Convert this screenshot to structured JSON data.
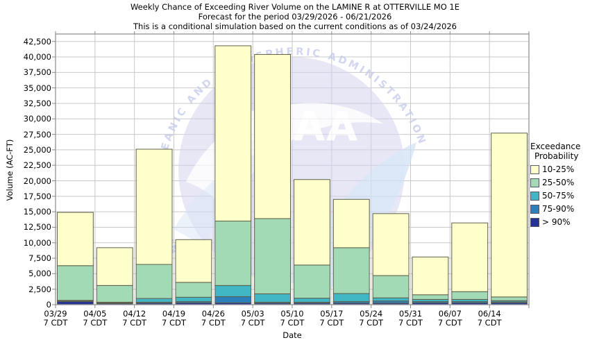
{
  "titles": {
    "line1": "Weekly Chance of Exceeding River Volume on the LAMINE R at OTTERVILLE MO 1E",
    "line2": "Forecast for the period 03/29/2026 - 06/21/2026",
    "line3": "This is a conditional simulation based on the current conditions as of 03/24/2026"
  },
  "axes": {
    "x_label": "Date",
    "y_label": "Volume (AC-FT)",
    "y_tick_step": 2500,
    "y_tick_max": 42500,
    "tick_time_suffix": "7 CDT"
  },
  "legend": {
    "title_line1": "Exceedance",
    "title_line2": "Probability",
    "items": [
      {
        "label": "10-25%",
        "color": "#FFFFCC"
      },
      {
        "label": "25-50%",
        "color": "#A1DAB4"
      },
      {
        "label": "50-75%",
        "color": "#41B6C4"
      },
      {
        "label": "75-90%",
        "color": "#2C7FB8"
      },
      {
        "label": "> 90%",
        "color": "#253494"
      }
    ]
  },
  "chart_data": {
    "type": "bar",
    "stacked": true,
    "title": "Weekly Chance of Exceeding River Volume on the LAMINE R at OTTERVILLE MO 1E",
    "xlabel": "Date",
    "ylabel": "Volume (AC-FT)",
    "ylim": [
      0,
      43700
    ],
    "grid": true,
    "legend_position": "right",
    "categories": [
      "03/29",
      "04/05",
      "04/12",
      "04/19",
      "04/26",
      "05/03",
      "05/10",
      "05/17",
      "05/24",
      "05/31",
      "06/07",
      "06/14"
    ],
    "category_sublabel": "7 CDT",
    "series": [
      {
        "name": "> 90%",
        "color": "#253494",
        "values": [
          500,
          200,
          250,
          300,
          300,
          250,
          250,
          250,
          250,
          300,
          300,
          300
        ]
      },
      {
        "name": "75-90%",
        "color": "#2C7FB8",
        "values": [
          150,
          100,
          150,
          200,
          1000,
          150,
          150,
          250,
          350,
          200,
          200,
          150
        ]
      },
      {
        "name": "50-75%",
        "color": "#41B6C4",
        "values": [
          50,
          100,
          600,
          700,
          1800,
          1350,
          650,
          1300,
          500,
          350,
          350,
          200
        ]
      },
      {
        "name": "25-50%",
        "color": "#A1DAB4",
        "values": [
          5600,
          2700,
          5500,
          2400,
          10400,
          12150,
          5350,
          7400,
          3600,
          750,
          1250,
          600
        ]
      },
      {
        "name": "10-25%",
        "color": "#FFFFCC",
        "values": [
          8600,
          6100,
          18600,
          6900,
          28300,
          26500,
          13800,
          7800,
          10000,
          6100,
          11100,
          26450
        ]
      }
    ],
    "totals": [
      14900,
      9200,
      25100,
      10500,
      41800,
      40400,
      20200,
      17000,
      14700,
      7700,
      13200,
      27700
    ]
  },
  "watermark": {
    "center_text": "NOAA",
    "arc_text": "NATIONAL OCEANIC AND ATMOSPHERIC ADMINISTRATION"
  },
  "colors": {
    "grid": "#c8c8c8",
    "plot_border": "#9a9a9a",
    "bar_border": "#5f5f4a",
    "watermark_circle": "#d3d3ef",
    "watermark_text": "#c3c9e9",
    "watermark_swoosh": "#cfe0f4"
  }
}
